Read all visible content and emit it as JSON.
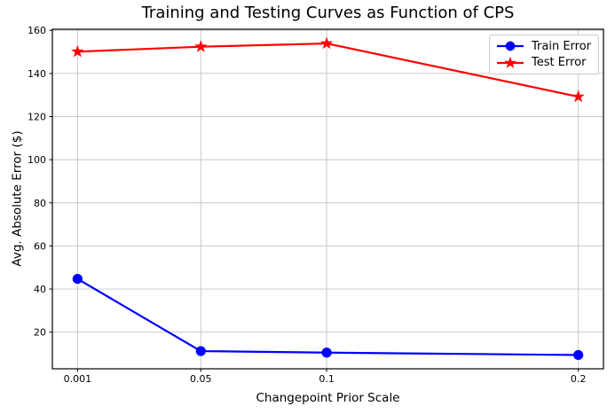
{
  "figure": {
    "background": "#ffffff"
  },
  "colors": {
    "grid": "#c4c4c4",
    "spine": "#000000",
    "tick": "#000000",
    "text": "#000000",
    "legend_border": "#cccccc"
  },
  "chart_data": {
    "type": "line",
    "title": "Training and Testing Curves as Function of CPS",
    "xlabel": "Changepoint Prior Scale",
    "ylabel": "Avg. Absolute Error ($)",
    "x": [
      0.001,
      0.05,
      0.1,
      0.2
    ],
    "x_tick_labels": [
      "0.001",
      "0.05",
      "0.1",
      "0.2"
    ],
    "y_ticks": [
      20,
      40,
      60,
      80,
      100,
      120,
      140,
      160
    ],
    "xlim": [
      -0.009,
      0.21
    ],
    "ylim": [
      3,
      160.5
    ],
    "grid": true,
    "legend": {
      "position": "upper right",
      "entries": [
        "Train Error",
        "Test Error"
      ]
    },
    "series": [
      {
        "name": "Train Error",
        "color": "#0000ff",
        "marker": "circle",
        "values": [
          44.7,
          11.2,
          10.5,
          9.4
        ]
      },
      {
        "name": "Test Error",
        "color": "#ff0000",
        "marker": "star",
        "values": [
          150.1,
          152.4,
          153.9,
          129.2
        ]
      }
    ]
  }
}
